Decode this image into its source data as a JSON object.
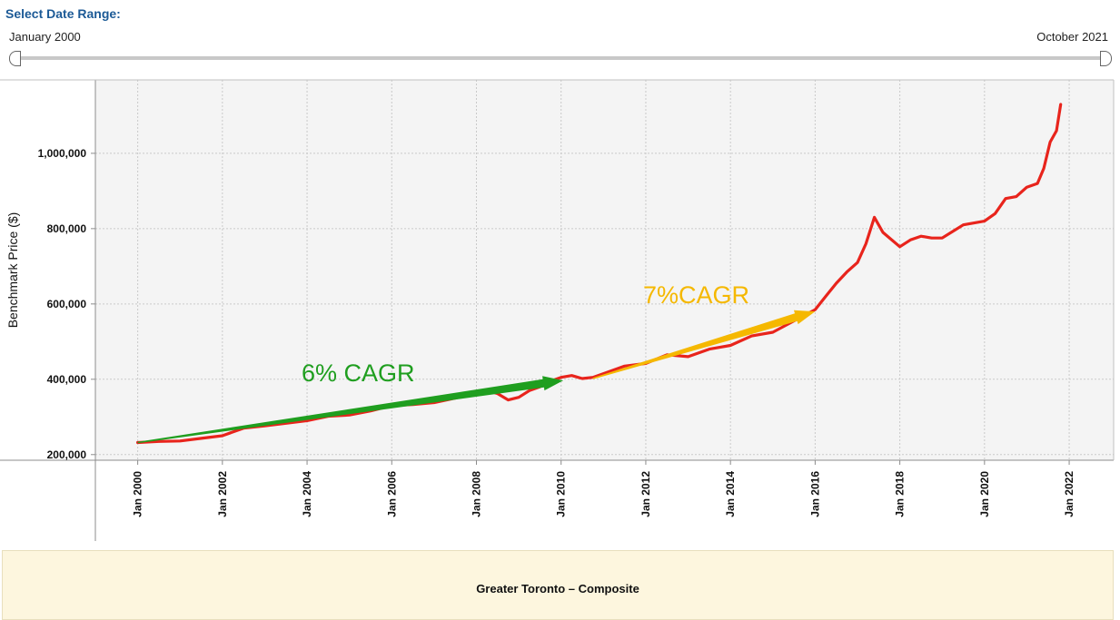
{
  "range": {
    "title": "Select Date Range:",
    "start_label": "January 2000",
    "end_label": "October 2021"
  },
  "footer": {
    "label": "Greater Toronto – Composite"
  },
  "colors": {
    "series": "#e8241c",
    "green_arrow": "#1f9e1f",
    "yellow_arrow": "#f5b800",
    "title": "#1c5a96"
  },
  "chart_data": {
    "type": "line",
    "ylabel": "Benchmark Price ($)",
    "xlim": [
      1999.0,
      2023.05
    ],
    "ylim": [
      185000,
      1195000
    ],
    "yticks": [
      {
        "value": 200000,
        "label": "200,000"
      },
      {
        "value": 400000,
        "label": "400,000"
      },
      {
        "value": 600000,
        "label": "600,000"
      },
      {
        "value": 800000,
        "label": "800,000"
      },
      {
        "value": 1000000,
        "label": "1,000,000"
      }
    ],
    "xticks": [
      {
        "value": 2000,
        "label": "Jan 2000"
      },
      {
        "value": 2002,
        "label": "Jan 2002"
      },
      {
        "value": 2004,
        "label": "Jan 2004"
      },
      {
        "value": 2006,
        "label": "Jan 2006"
      },
      {
        "value": 2008,
        "label": "Jan 2008"
      },
      {
        "value": 2010,
        "label": "Jan 2010"
      },
      {
        "value": 2012,
        "label": "Jan 2012"
      },
      {
        "value": 2014,
        "label": "Jan 2014"
      },
      {
        "value": 2016,
        "label": "Jan 2016"
      },
      {
        "value": 2018,
        "label": "Jan 2018"
      },
      {
        "value": 2020,
        "label": "Jan 2020"
      },
      {
        "value": 2022,
        "label": "Jan 2022"
      }
    ],
    "grid": true,
    "series": [
      {
        "x": [
          2000.0,
          2000.5,
          2001.0,
          2001.5,
          2002.0,
          2002.5,
          2003.0,
          2003.5,
          2004.0,
          2004.5,
          2005.0,
          2005.5,
          2006.0,
          2006.5,
          2007.0,
          2007.5,
          2008.0,
          2008.25,
          2008.5,
          2008.75,
          2009.0,
          2009.25,
          2009.5,
          2009.75,
          2010.0,
          2010.25,
          2010.5,
          2010.75,
          2011.0,
          2011.5,
          2012.0,
          2012.5,
          2013.0,
          2013.5,
          2014.0,
          2014.5,
          2015.0,
          2015.5,
          2016.0,
          2016.25,
          2016.5,
          2016.75,
          2017.0,
          2017.2,
          2017.4,
          2017.6,
          2018.0,
          2018.25,
          2018.5,
          2018.75,
          2019.0,
          2019.5,
          2020.0,
          2020.25,
          2020.5,
          2020.75,
          2021.0,
          2021.25,
          2021.4,
          2021.55,
          2021.7,
          2021.8
        ],
        "values": [
          232000,
          235000,
          236000,
          243000,
          250000,
          270000,
          276000,
          283000,
          290000,
          302000,
          305000,
          316000,
          330000,
          333000,
          338000,
          350000,
          363000,
          370000,
          362000,
          345000,
          352000,
          370000,
          380000,
          395000,
          405000,
          410000,
          402000,
          405000,
          415000,
          435000,
          442000,
          465000,
          460000,
          480000,
          490000,
          515000,
          525000,
          555000,
          585000,
          620000,
          655000,
          685000,
          710000,
          760000,
          830000,
          790000,
          752000,
          770000,
          780000,
          775000,
          775000,
          810000,
          820000,
          840000,
          880000,
          885000,
          910000,
          920000,
          960000,
          1030000,
          1060000,
          1130000
        ]
      }
    ],
    "annotations": [
      {
        "text": "6% CAGR",
        "x_start": 2000.0,
        "y_start": 232000,
        "x_end": 2010.05,
        "y_end": 397000
      },
      {
        "text": "7%CAGR",
        "x_start": 2010.75,
        "y_start": 402000,
        "x_end": 2016.0,
        "y_end": 580000
      }
    ]
  }
}
